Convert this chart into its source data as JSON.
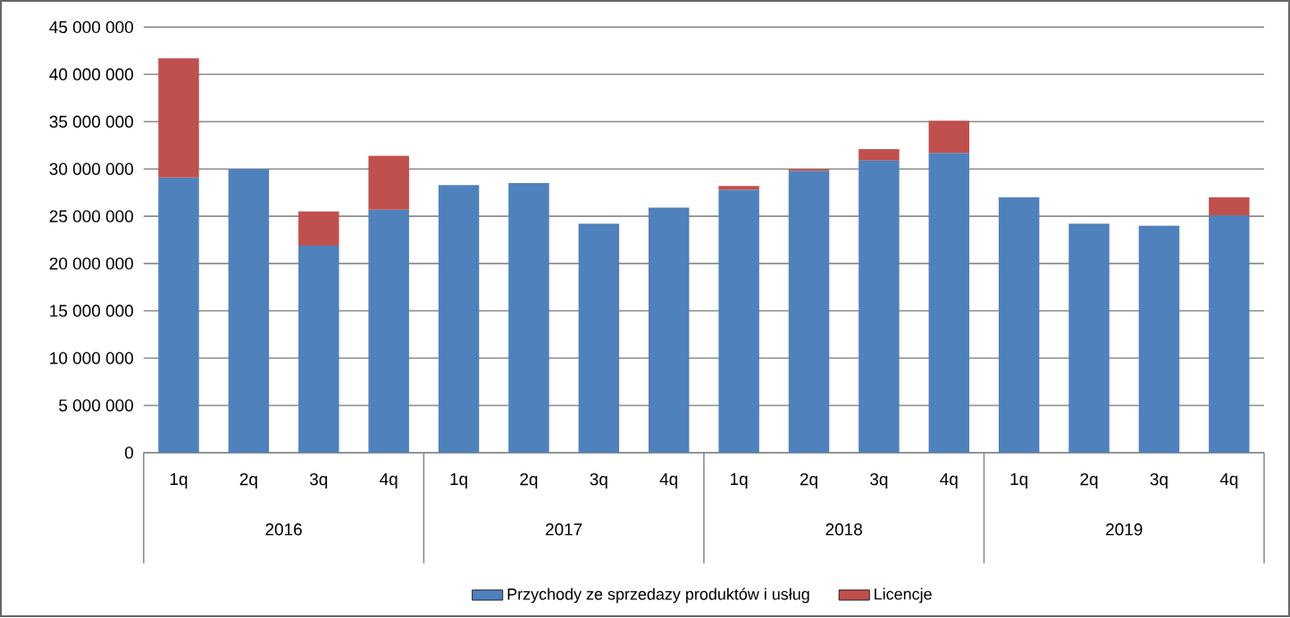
{
  "chart_data": {
    "type": "bar",
    "stacked": true,
    "categories": [
      "1q",
      "2q",
      "3q",
      "4q",
      "1q",
      "2q",
      "3q",
      "4q",
      "1q",
      "2q",
      "3q",
      "4q",
      "1q",
      "2q",
      "3q",
      "4q"
    ],
    "annotations": [
      "2016",
      "2017",
      "2018",
      "2019"
    ],
    "series": [
      {
        "name": "Przychody ze sprzedazy produktów i usług",
        "color": "#4f81bd",
        "values": [
          29100000,
          30000000,
          21900000,
          25700000,
          28300000,
          28500000,
          24200000,
          25900000,
          27800000,
          29800000,
          30900000,
          31700000,
          27000000,
          24200000,
          24000000,
          25100000
        ]
      },
      {
        "name": "Licencje",
        "color": "#c0504d",
        "values": [
          12600000,
          null,
          3600000,
          5700000,
          null,
          null,
          null,
          null,
          400000,
          200000,
          1200000,
          3400000,
          null,
          null,
          null,
          1900000
        ]
      }
    ],
    "ylim": [
      0,
      45000000
    ],
    "yticks": [
      {
        "value": 0,
        "label": "0"
      },
      {
        "value": 5000000,
        "label": "5 000 000"
      },
      {
        "value": 10000000,
        "label": "10 000 000"
      },
      {
        "value": 15000000,
        "label": "15 000 000"
      },
      {
        "value": 20000000,
        "label": "20 000 000"
      },
      {
        "value": 25000000,
        "label": "25 000 000"
      },
      {
        "value": 30000000,
        "label": "30 000 000"
      },
      {
        "value": 35000000,
        "label": "35 000 000"
      },
      {
        "value": 40000000,
        "label": "40 000 000"
      },
      {
        "value": 45000000,
        "label": "45 000 000"
      }
    ],
    "grid": "y",
    "legend": "bottom"
  }
}
